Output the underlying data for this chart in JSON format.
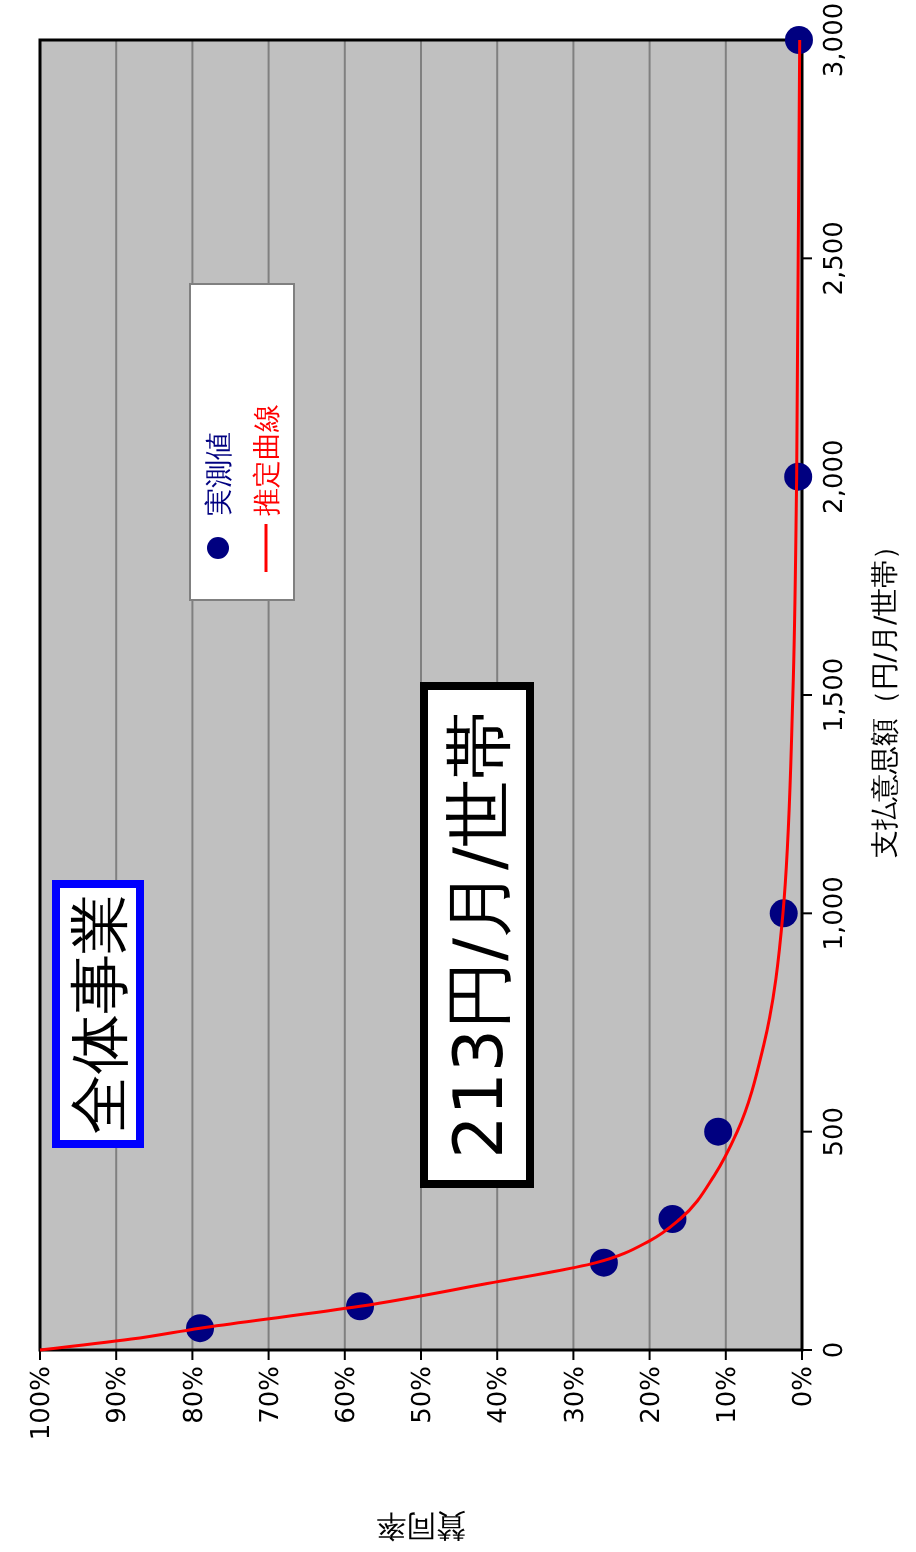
{
  "chart_data": {
    "type": "scatter",
    "xlabel": "賛同率",
    "ylabel": "支払意思額（円/月/世帯）",
    "xlim": [
      100,
      0
    ],
    "ylim": [
      0,
      3000
    ],
    "xticks": [
      {
        "value": 100,
        "label": "100%"
      },
      {
        "value": 90,
        "label": "90%"
      },
      {
        "value": 80,
        "label": "80%"
      },
      {
        "value": 70,
        "label": "70%"
      },
      {
        "value": 60,
        "label": "60%"
      },
      {
        "value": 50,
        "label": "50%"
      },
      {
        "value": 40,
        "label": "40%"
      },
      {
        "value": 30,
        "label": "30%"
      },
      {
        "value": 20,
        "label": "20%"
      },
      {
        "value": 10,
        "label": "10%"
      },
      {
        "value": 0,
        "label": "0%"
      }
    ],
    "yticks": [
      0,
      500,
      {
        "value": 1000,
        "label": "1,000"
      },
      {
        "value": 1500,
        "label": "1,500"
      },
      {
        "value": 2000,
        "label": "2,000"
      },
      {
        "value": 2500,
        "label": "2,500"
      },
      {
        "value": 3000,
        "label": "3,000"
      }
    ],
    "grid": "x",
    "legend": "top left",
    "annotations": [
      "全体事業",
      "213円/月/世帯"
    ],
    "series": [
      {
        "name": "実測値",
        "marker": "circle",
        "color": "#000080",
        "x": [
          79,
          58,
          26,
          17,
          11,
          2.4,
          0.5,
          0.4
        ],
        "values": [
          50,
          100,
          200,
          300,
          500,
          1000,
          2000,
          3000
        ]
      },
      {
        "name": "推定曲線",
        "type": "line",
        "marker": "none",
        "color": "#ff0000",
        "x": [
          100,
          88,
          79,
          58,
          42,
          27,
          20,
          16,
          11.5,
          8.5,
          5,
          2.5,
          1.2,
          0.7,
          0.3
        ],
        "values": [
          0,
          25,
          50,
          100,
          150,
          200,
          250,
          300,
          400,
          500,
          700,
          1000,
          1500,
          2000,
          3000
        ]
      }
    ]
  }
}
